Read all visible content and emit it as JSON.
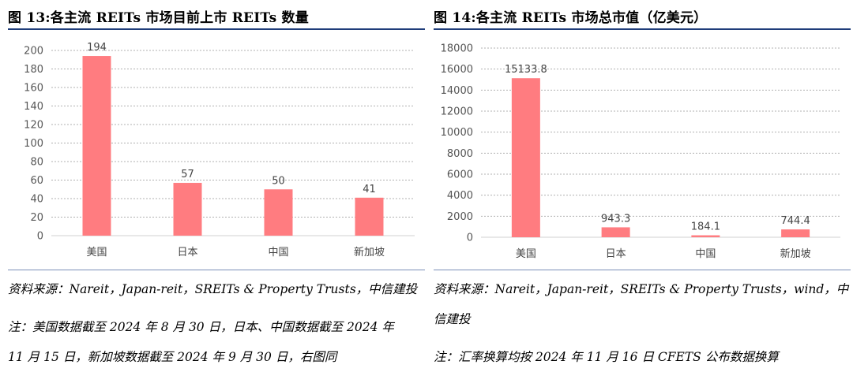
{
  "left": {
    "figure_title": "图 13:各主流 REITs 市场目前上市 REITs 数量",
    "source_line": "资料来源：Nareit，Japan-reit，SREITs & Property Trusts，中信建投",
    "note_line1": "注：美国数据截至 2024 年 8 月 30 日，日本、中国数据截至 2024 年",
    "note_line2": "11 月 15 日，新加坡数据截至 2024 年 9 月 30 日，右图同"
  },
  "right": {
    "figure_title": "图 14:各主流 REITs 市场总市值（亿美元）",
    "source_line1": "资料来源：Nareit，Japan-reit，SREITs & Property Trusts，wind，中",
    "source_line2": "信建投",
    "note_line": "注：汇率换算均按 2024 年 11 月 16 日 CFETS 公布数据换算"
  },
  "colors": {
    "bar": "#ff7c80",
    "grid": "#b0b0b0",
    "title_rule": "#1f3d7a"
  },
  "chart_data": [
    {
      "type": "bar",
      "title": "",
      "xlabel": "",
      "ylabel": "",
      "categories": [
        "美国",
        "日本",
        "中国",
        "新加坡"
      ],
      "values": [
        194,
        57,
        50,
        41
      ],
      "value_labels": [
        "194",
        "57",
        "50",
        "41"
      ],
      "ylim": [
        0,
        200
      ],
      "yticks": [
        0,
        20,
        40,
        60,
        80,
        100,
        120,
        140,
        160,
        180,
        200
      ],
      "grid": true,
      "legend": "none"
    },
    {
      "type": "bar",
      "title": "",
      "xlabel": "",
      "ylabel": "",
      "categories": [
        "美国",
        "日本",
        "中国",
        "新加坡"
      ],
      "values": [
        15133.8,
        943.3,
        184.1,
        744.4
      ],
      "value_labels": [
        "15133.8",
        "943.3",
        "184.1",
        "744.4"
      ],
      "ylim": [
        0,
        18000
      ],
      "yticks": [
        0,
        2000,
        4000,
        6000,
        8000,
        10000,
        12000,
        14000,
        16000,
        18000
      ],
      "grid": true,
      "legend": "none"
    }
  ]
}
